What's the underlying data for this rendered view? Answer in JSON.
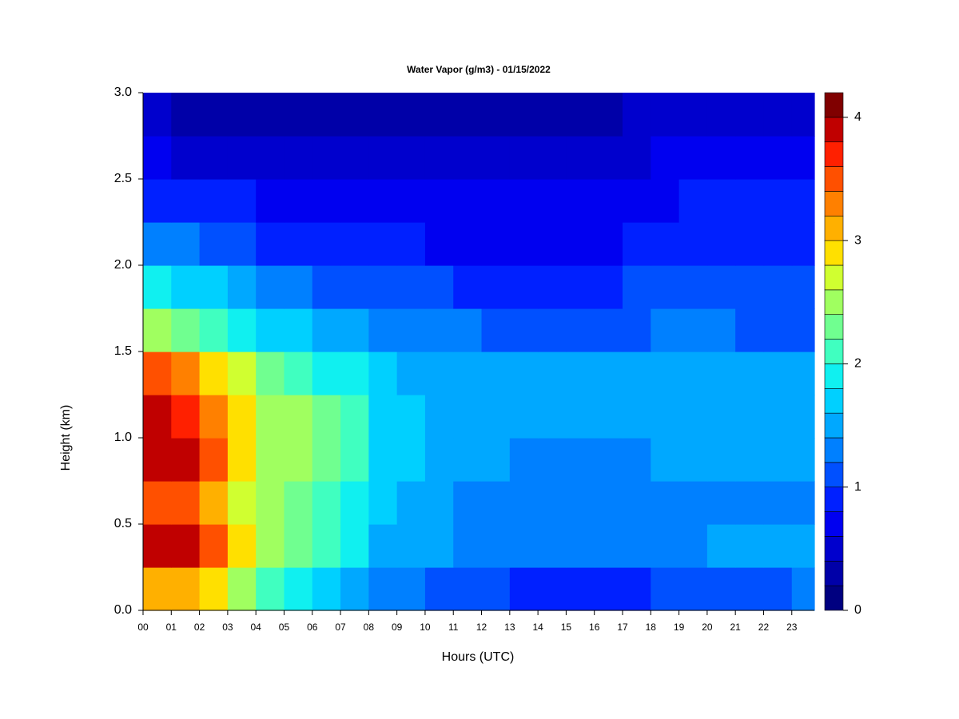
{
  "chart_data": {
    "type": "heatmap",
    "title": "Water Vapor (g/m3) - 01/15/2022",
    "xlabel": "Hours (UTC)",
    "ylabel": "Height (km)",
    "x_edges": [
      0,
      1,
      2,
      3,
      4,
      5,
      6,
      7,
      8,
      9,
      10,
      11,
      12,
      13,
      14,
      15,
      16,
      17,
      18,
      19,
      20,
      21,
      22,
      23,
      23.8
    ],
    "y_edges": [
      0,
      0.25,
      0.5,
      0.75,
      1.0,
      1.25,
      1.5,
      1.75,
      2.0,
      2.25,
      2.5,
      2.75,
      3.0
    ],
    "values": [
      [
        3.0,
        3.0,
        2.8,
        2.4,
        2.0,
        1.8,
        1.6,
        1.5,
        1.2,
        1.2,
        1.1,
        1.1,
        1.0,
        0.9,
        0.9,
        0.9,
        0.9,
        0.9,
        1.0,
        1.0,
        1.1,
        1.1,
        1.1,
        1.2
      ],
      [
        3.8,
        3.8,
        3.4,
        2.9,
        2.4,
        2.2,
        2.0,
        1.8,
        1.5,
        1.4,
        1.4,
        1.3,
        1.3,
        1.2,
        1.2,
        1.2,
        1.2,
        1.2,
        1.3,
        1.3,
        1.4,
        1.4,
        1.4,
        1.5
      ],
      [
        3.4,
        3.4,
        3.0,
        2.7,
        2.4,
        2.3,
        2.1,
        1.9,
        1.6,
        1.5,
        1.4,
        1.3,
        1.3,
        1.2,
        1.2,
        1.2,
        1.2,
        1.2,
        1.3,
        1.3,
        1.3,
        1.3,
        1.3,
        1.3
      ],
      [
        3.9,
        3.8,
        3.4,
        2.9,
        2.5,
        2.4,
        2.2,
        2.0,
        1.6,
        1.6,
        1.5,
        1.5,
        1.4,
        1.3,
        1.3,
        1.3,
        1.3,
        1.3,
        1.4,
        1.4,
        1.4,
        1.4,
        1.4,
        1.4
      ],
      [
        3.8,
        3.7,
        3.3,
        2.8,
        2.5,
        2.4,
        2.2,
        2.0,
        1.6,
        1.6,
        1.5,
        1.5,
        1.5,
        1.4,
        1.4,
        1.4,
        1.4,
        1.4,
        1.5,
        1.5,
        1.5,
        1.4,
        1.4,
        1.4
      ],
      [
        3.4,
        3.2,
        2.9,
        2.6,
        2.3,
        2.1,
        1.9,
        1.8,
        1.6,
        1.5,
        1.5,
        1.5,
        1.4,
        1.4,
        1.4,
        1.4,
        1.4,
        1.4,
        1.5,
        1.5,
        1.5,
        1.4,
        1.4,
        1.4
      ],
      [
        2.5,
        2.3,
        2.1,
        1.9,
        1.7,
        1.6,
        1.5,
        1.4,
        1.3,
        1.2,
        1.2,
        1.2,
        1.1,
        1.1,
        1.1,
        1.1,
        1.1,
        1.1,
        1.2,
        1.2,
        1.2,
        1.1,
        1.1,
        1.1
      ],
      [
        1.8,
        1.7,
        1.6,
        1.4,
        1.3,
        1.2,
        1.1,
        1.1,
        1.0,
        1.0,
        1.0,
        0.9,
        0.9,
        0.9,
        0.9,
        0.9,
        0.9,
        1.0,
        1.0,
        1.0,
        1.0,
        1.0,
        1.0,
        1.0
      ],
      [
        1.3,
        1.2,
        1.1,
        1.0,
        0.9,
        0.9,
        0.8,
        0.8,
        0.8,
        0.8,
        0.7,
        0.7,
        0.7,
        0.7,
        0.7,
        0.7,
        0.7,
        0.8,
        0.8,
        0.8,
        0.8,
        0.8,
        0.8,
        0.8
      ],
      [
        0.9,
        0.9,
        0.8,
        0.8,
        0.7,
        0.7,
        0.7,
        0.7,
        0.6,
        0.6,
        0.6,
        0.6,
        0.6,
        0.6,
        0.6,
        0.6,
        0.7,
        0.7,
        0.7,
        0.8,
        0.8,
        0.8,
        0.8,
        0.8
      ],
      [
        0.6,
        0.5,
        0.5,
        0.5,
        0.5,
        0.4,
        0.4,
        0.4,
        0.4,
        0.4,
        0.4,
        0.4,
        0.4,
        0.4,
        0.4,
        0.4,
        0.5,
        0.5,
        0.6,
        0.6,
        0.6,
        0.7,
        0.7,
        0.7
      ],
      [
        0.4,
        0.3,
        0.3,
        0.3,
        0.3,
        0.3,
        0.3,
        0.3,
        0.2,
        0.2,
        0.2,
        0.2,
        0.3,
        0.3,
        0.3,
        0.3,
        0.3,
        0.4,
        0.4,
        0.4,
        0.5,
        0.5,
        0.5,
        0.5
      ]
    ],
    "xlim": [
      0,
      23.8
    ],
    "ylim": [
      0,
      3.0
    ],
    "xticks": [
      {
        "value": 0,
        "label": "00"
      },
      {
        "value": 1,
        "label": "01"
      },
      {
        "value": 2,
        "label": "02"
      },
      {
        "value": 3,
        "label": "03"
      },
      {
        "value": 4,
        "label": "04"
      },
      {
        "value": 5,
        "label": "05"
      },
      {
        "value": 6,
        "label": "06"
      },
      {
        "value": 7,
        "label": "07"
      },
      {
        "value": 8,
        "label": "08"
      },
      {
        "value": 9,
        "label": "09"
      },
      10,
      11,
      12,
      13,
      14,
      15,
      16,
      17,
      18,
      19,
      20,
      21,
      22,
      23
    ],
    "yticks": [
      {
        "value": 0,
        "label": "0.0"
      },
      0.5,
      {
        "value": 1,
        "label": "1.0"
      },
      1.5,
      {
        "value": 2,
        "label": "2.0"
      },
      2.5,
      {
        "value": 3,
        "label": "3.0"
      }
    ],
    "levels": [
      0,
      0.2,
      0.4,
      0.6,
      0.8,
      1.0,
      1.2,
      1.4,
      1.6,
      1.8,
      2.0,
      2.2,
      2.4,
      2.6,
      2.8,
      3.0,
      3.2,
      3.4,
      3.6,
      3.8,
      4.0,
      4.2
    ],
    "colors": [
      "#000080",
      "#0000a8",
      "#0000cd",
      "#0000f0",
      "#0020ff",
      "#0050ff",
      "#0080ff",
      "#00a8ff",
      "#00d0ff",
      "#10f0f0",
      "#40ffc0",
      "#70ff90",
      "#a0ff60",
      "#d0ff30",
      "#ffe000",
      "#ffb000",
      "#ff8000",
      "#ff5000",
      "#ff2000",
      "#c00000",
      "#800000"
    ],
    "colorbar_lim": [
      0,
      4.2
    ],
    "colorbar_ticks": [
      0,
      1,
      2,
      3,
      4
    ]
  }
}
